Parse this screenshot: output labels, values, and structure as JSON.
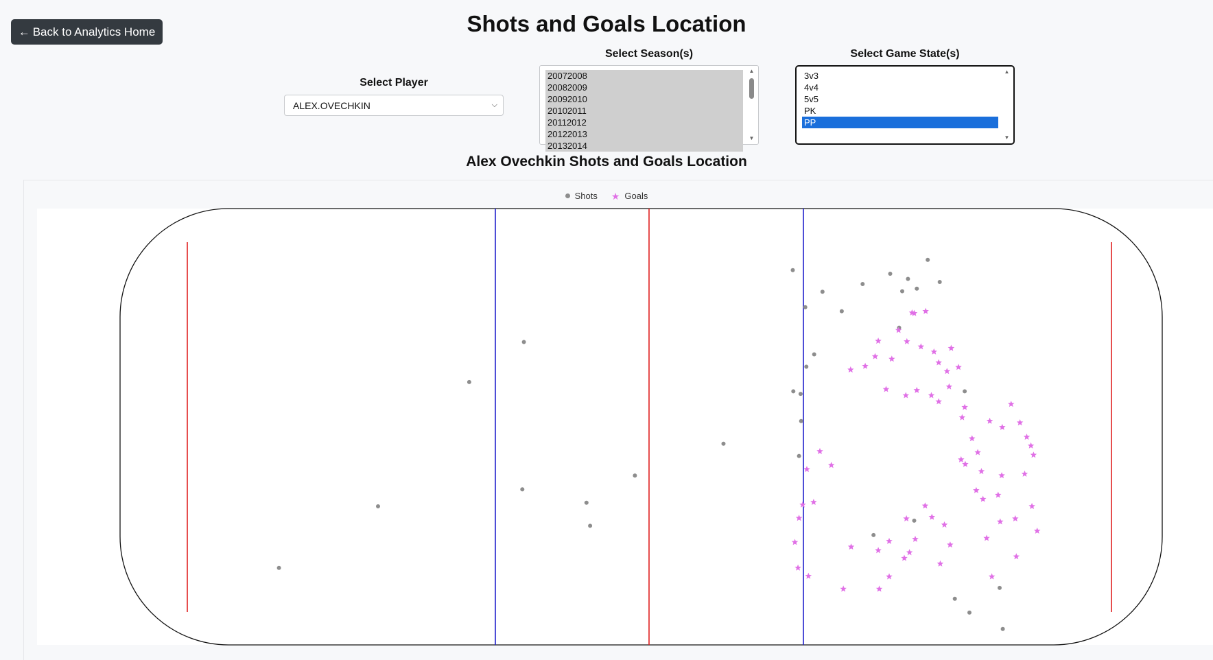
{
  "nav": {
    "back_arrow": "←",
    "back_label": "Back to Analytics Home"
  },
  "page_title": "Shots and Goals Location",
  "controls": {
    "player": {
      "label": "Select Player",
      "value": "ALEX.OVECHKIN"
    },
    "seasons": {
      "label": "Select Season(s)",
      "options": [
        "20072008",
        "20082009",
        "20092010",
        "20102011",
        "20112012",
        "20122013",
        "20132014"
      ]
    },
    "game_states": {
      "label": "Select Game State(s)",
      "options": [
        "3v3",
        "4v4",
        "5v5",
        "PK",
        "PP"
      ],
      "selected": "PP"
    }
  },
  "chart_title": "Alex Ovechkin Shots and Goals Location",
  "legend": {
    "shots": "Shots",
    "goals": "Goals"
  },
  "colors": {
    "shot": "#8d8d8d",
    "goal": "#e070e6",
    "red_line": "#e02020",
    "blue_line": "#2020cc",
    "board": "#111111",
    "selected": "#1a6fdb"
  },
  "chart_data": {
    "type": "scatter",
    "xlim": [
      -100,
      100
    ],
    "ylim": [
      -42.5,
      42.5
    ],
    "series": [
      {
        "name": "Shots",
        "points": [
          [
            -69.5,
            -27.5
          ],
          [
            -50.5,
            -15.5
          ],
          [
            -33,
            8.7
          ],
          [
            -22.5,
            16.5
          ],
          [
            -22.8,
            -12.2
          ],
          [
            -10.5,
            -14.8
          ],
          [
            -9.8,
            -19.3
          ],
          [
            -1.2,
            -9.5
          ],
          [
            15.8,
            -3.3
          ],
          [
            29.2,
            6.9
          ],
          [
            30.6,
            6.4
          ],
          [
            49.5,
            19.3
          ],
          [
            62.1,
            6.9
          ],
          [
            69.4,
            -39.4
          ],
          [
            63,
            -36.2
          ],
          [
            60.2,
            -33.5
          ],
          [
            52.4,
            -18.3
          ],
          [
            68.8,
            -31.4
          ],
          [
            44.6,
            -21.1
          ],
          [
            38.5,
            22.5
          ],
          [
            42.5,
            27.8
          ],
          [
            47.8,
            29.8
          ],
          [
            55,
            32.5
          ],
          [
            57.3,
            28.2
          ],
          [
            51.2,
            28.8
          ],
          [
            52.9,
            26.9
          ],
          [
            50.1,
            26.4
          ],
          [
            31.5,
            23.3
          ],
          [
            29.1,
            30.5
          ],
          [
            34.8,
            26.3
          ],
          [
            33.2,
            14.1
          ],
          [
            31.7,
            11.7
          ],
          [
            30.7,
            1.1
          ],
          [
            30.3,
            -5.7
          ]
        ]
      },
      {
        "name": "Goals",
        "points": [
          [
            52.4,
            22.1
          ],
          [
            52,
            22.2
          ],
          [
            54.6,
            22.5
          ],
          [
            40.2,
            11.1
          ],
          [
            48.1,
            13.2
          ],
          [
            56.2,
            14.6
          ],
          [
            53.7,
            15.6
          ],
          [
            51,
            16.6
          ],
          [
            45.5,
            16.7
          ],
          [
            44.9,
            13.7
          ],
          [
            57.1,
            12.5
          ],
          [
            58.7,
            10.8
          ],
          [
            59.5,
            15.3
          ],
          [
            60.9,
            11.6
          ],
          [
            49.4,
            18.8
          ],
          [
            43,
            11.8
          ],
          [
            47,
            7.3
          ],
          [
            50.8,
            6.1
          ],
          [
            52.9,
            7.1
          ],
          [
            55.7,
            6.1
          ],
          [
            59.1,
            7.8
          ],
          [
            57.1,
            4.9
          ],
          [
            62.1,
            3.8
          ],
          [
            61.6,
            1.8
          ],
          [
            63.5,
            -2.3
          ],
          [
            64.6,
            -5
          ],
          [
            62.2,
            -7.3
          ],
          [
            65.3,
            -8.7
          ],
          [
            66.9,
            1.1
          ],
          [
            69.3,
            -0.1
          ],
          [
            71,
            4.4
          ],
          [
            72.7,
            0.8
          ],
          [
            74,
            -2
          ],
          [
            74.8,
            -3.7
          ],
          [
            75.3,
            -5.5
          ],
          [
            73.6,
            -9.2
          ],
          [
            69.2,
            -9.5
          ],
          [
            68.5,
            -13.3
          ],
          [
            64.3,
            -12.4
          ],
          [
            61.4,
            -6.4
          ],
          [
            65.6,
            -14.1
          ],
          [
            68.9,
            -18.5
          ],
          [
            71.8,
            -17.9
          ],
          [
            75,
            -15.5
          ],
          [
            66.3,
            -21.7
          ],
          [
            59.3,
            -23
          ],
          [
            58.2,
            -19.1
          ],
          [
            54.5,
            -15.4
          ],
          [
            55.8,
            -17.6
          ],
          [
            50.9,
            -17.9
          ],
          [
            47.6,
            -22.3
          ],
          [
            51.5,
            -24.5
          ],
          [
            45.5,
            -24.1
          ],
          [
            40.3,
            -23.4
          ],
          [
            31.8,
            -8.3
          ],
          [
            34.3,
            -4.8
          ],
          [
            36.5,
            -7.5
          ],
          [
            31,
            -15.2
          ],
          [
            30.3,
            -17.8
          ],
          [
            33.1,
            -14.7
          ],
          [
            29.5,
            -22.5
          ],
          [
            30.1,
            -27.5
          ],
          [
            32.1,
            -29.1
          ],
          [
            38.8,
            -31.6
          ],
          [
            45.7,
            -31.6
          ],
          [
            47.6,
            -29.2
          ],
          [
            50.5,
            -25.6
          ],
          [
            52.6,
            -21.9
          ],
          [
            57.4,
            -26.7
          ],
          [
            67.3,
            -29.2
          ],
          [
            72,
            -25.3
          ],
          [
            76,
            -20.3
          ]
        ]
      }
    ]
  }
}
